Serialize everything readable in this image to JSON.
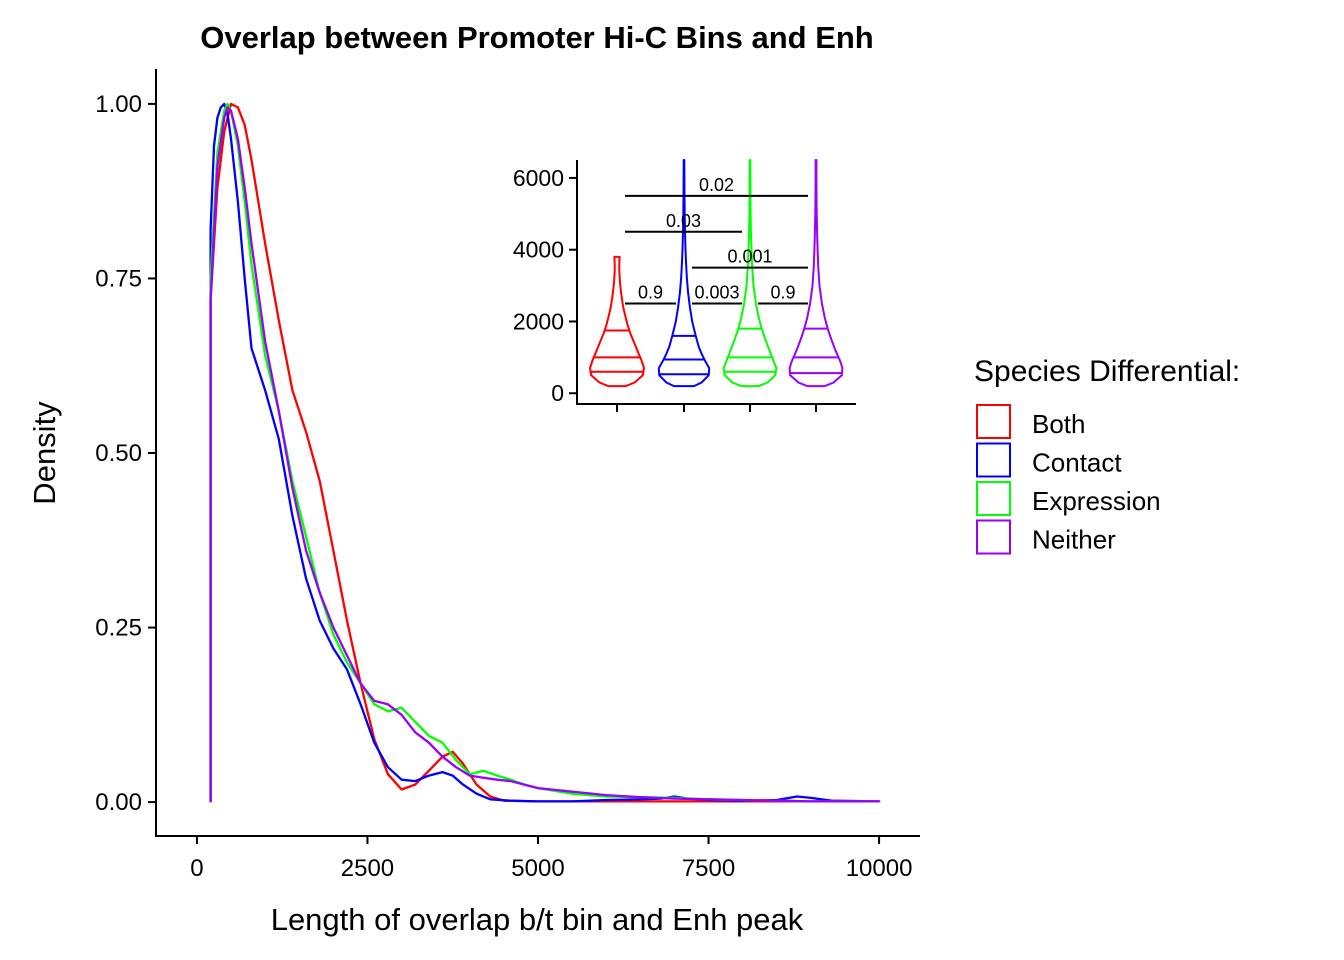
{
  "chart_data": [
    {
      "type": "line",
      "subtype": "density",
      "title": "Overlap between Promoter Hi-C Bins and Enh",
      "xlabel": "Length of overlap b/t bin and Enh peak",
      "ylabel": "Density",
      "xlim": [
        -600,
        10600
      ],
      "ylim": [
        -0.05,
        1.05
      ],
      "xticks": [
        0,
        2500,
        5000,
        7500,
        10000
      ],
      "xtick_labels": [
        "0",
        "2500",
        "5000",
        "7500",
        "10000"
      ],
      "yticks": [
        0,
        0.25,
        0.5,
        0.75,
        1
      ],
      "ytick_labels": [
        "0.00",
        "0.25",
        "0.50",
        "0.75",
        "1.00"
      ],
      "series": [
        {
          "name": "Both",
          "color": "#FF0000",
          "x": [
            200,
            200,
            300,
            400,
            500,
            600,
            700,
            800,
            1000,
            1200,
            1400,
            1600,
            1800,
            2000,
            2200,
            2400,
            2600,
            2800,
            3000,
            3200,
            3400,
            3600,
            3750,
            3900,
            4100,
            4300,
            4500,
            5000,
            6000,
            7000,
            8000,
            9000,
            10000,
            10000
          ],
          "y": [
            0,
            0.72,
            0.88,
            0.96,
            1.0,
            0.995,
            0.97,
            0.92,
            0.8,
            0.69,
            0.59,
            0.53,
            0.46,
            0.36,
            0.26,
            0.17,
            0.09,
            0.04,
            0.018,
            0.025,
            0.045,
            0.065,
            0.072,
            0.055,
            0.025,
            0.008,
            0.002,
            0.001,
            0.001,
            0.001,
            0.001,
            0.001,
            0.001,
            0
          ]
        },
        {
          "name": "Contact",
          "color": "#0000FF",
          "x": [
            200,
            200,
            250,
            300,
            350,
            400,
            450,
            500,
            600,
            700,
            800,
            1000,
            1200,
            1400,
            1600,
            1800,
            2000,
            2200,
            2400,
            2600,
            2800,
            3000,
            3200,
            3400,
            3600,
            3750,
            3900,
            4100,
            4300,
            4600,
            5000,
            5500,
            6000,
            6500,
            6800,
            7000,
            7200,
            7500,
            8000,
            8500,
            8800,
            9000,
            9300,
            10000,
            10000
          ],
          "y": [
            0,
            0.82,
            0.94,
            0.98,
            0.995,
            1.0,
            0.985,
            0.95,
            0.86,
            0.75,
            0.65,
            0.59,
            0.52,
            0.41,
            0.32,
            0.26,
            0.22,
            0.19,
            0.14,
            0.085,
            0.05,
            0.032,
            0.03,
            0.038,
            0.043,
            0.038,
            0.025,
            0.012,
            0.004,
            0.002,
            0.001,
            0.001,
            0.003,
            0.004,
            0.005,
            0.008,
            0.005,
            0.003,
            0.002,
            0.003,
            0.008,
            0.006,
            0.002,
            0.001,
            0
          ]
        },
        {
          "name": "Expression",
          "color": "#00FF00",
          "x": [
            200,
            200,
            300,
            400,
            450,
            500,
            600,
            700,
            800,
            1000,
            1200,
            1400,
            1600,
            1800,
            2000,
            2200,
            2400,
            2600,
            2800,
            3000,
            3200,
            3400,
            3600,
            3800,
            4000,
            4200,
            4400,
            4600,
            4800,
            5000,
            5500,
            6000,
            6500,
            7000,
            7500,
            8000,
            8500,
            9000,
            10000,
            10000
          ],
          "y": [
            0,
            0.75,
            0.93,
            0.99,
            1.0,
            0.99,
            0.94,
            0.86,
            0.77,
            0.64,
            0.56,
            0.46,
            0.38,
            0.3,
            0.24,
            0.2,
            0.17,
            0.14,
            0.13,
            0.135,
            0.115,
            0.095,
            0.085,
            0.06,
            0.04,
            0.045,
            0.038,
            0.032,
            0.025,
            0.02,
            0.012,
            0.008,
            0.007,
            0.006,
            0.004,
            0.003,
            0.002,
            0.001,
            0.001,
            0
          ]
        },
        {
          "name": "Neither",
          "color": "#9900FF",
          "x": [
            200,
            200,
            300,
            400,
            450,
            500,
            600,
            700,
            800,
            1000,
            1200,
            1400,
            1600,
            1800,
            2000,
            2200,
            2400,
            2600,
            2800,
            3000,
            3200,
            3400,
            3600,
            3800,
            4000,
            4200,
            4400,
            4600,
            4800,
            5000,
            5500,
            6000,
            6500,
            7000,
            7500,
            8000,
            8500,
            9000,
            10000,
            10000
          ],
          "y": [
            0,
            0.72,
            0.91,
            0.98,
            0.995,
            0.99,
            0.95,
            0.88,
            0.8,
            0.66,
            0.56,
            0.45,
            0.36,
            0.3,
            0.25,
            0.21,
            0.17,
            0.145,
            0.14,
            0.125,
            0.1,
            0.085,
            0.065,
            0.05,
            0.038,
            0.035,
            0.032,
            0.03,
            0.025,
            0.02,
            0.015,
            0.01,
            0.007,
            0.005,
            0.004,
            0.003,
            0.002,
            0.001,
            0.001,
            0
          ]
        }
      ]
    },
    {
      "type": "violin",
      "title": "",
      "xlabel": "",
      "ylabel": "",
      "ylim": [
        -300,
        6500
      ],
      "yticks": [
        0,
        2000,
        4000,
        6000
      ],
      "ytick_labels": [
        "0",
        "2000",
        "4000",
        "6000"
      ],
      "groups": [
        {
          "name": "Both",
          "color": "#FF0000",
          "min": 200,
          "max": 3800,
          "quantiles": [
            600,
            1000,
            1750
          ],
          "profile": [
            [
              200,
              150
            ],
            [
              300,
              300
            ],
            [
              500,
              440
            ],
            [
              700,
              460
            ],
            [
              900,
              420
            ],
            [
              1100,
              370
            ],
            [
              1300,
              320
            ],
            [
              1500,
              270
            ],
            [
              1700,
              220
            ],
            [
              1900,
              180
            ],
            [
              2100,
              150
            ],
            [
              2300,
              120
            ],
            [
              2500,
              95
            ],
            [
              2800,
              70
            ],
            [
              3100,
              50
            ],
            [
              3400,
              40
            ],
            [
              3600,
              40
            ],
            [
              3800,
              45
            ]
          ]
        },
        {
          "name": "Contact",
          "color": "#0000FF",
          "min": 200,
          "max": 6500,
          "quantiles": [
            530,
            940,
            1600
          ],
          "profile": [
            [
              200,
              170
            ],
            [
              300,
              300
            ],
            [
              500,
              420
            ],
            [
              700,
              430
            ],
            [
              900,
              360
            ],
            [
              1100,
              300
            ],
            [
              1300,
              250
            ],
            [
              1600,
              200
            ],
            [
              2000,
              140
            ],
            [
              2400,
              100
            ],
            [
              2800,
              70
            ],
            [
              3200,
              50
            ],
            [
              3600,
              35
            ],
            [
              4000,
              25
            ],
            [
              4500,
              17
            ],
            [
              5000,
              12
            ],
            [
              5500,
              8
            ],
            [
              6000,
              6
            ],
            [
              6500,
              5
            ]
          ]
        },
        {
          "name": "Expression",
          "color": "#00FF00",
          "min": 200,
          "max": 6500,
          "quantiles": [
            600,
            1000,
            1800
          ],
          "profile": [
            [
              200,
              150
            ],
            [
              300,
              300
            ],
            [
              500,
              430
            ],
            [
              700,
              450
            ],
            [
              900,
              400
            ],
            [
              1200,
              330
            ],
            [
              1500,
              260
            ],
            [
              1800,
              200
            ],
            [
              2100,
              150
            ],
            [
              2500,
              100
            ],
            [
              3000,
              60
            ],
            [
              3500,
              38
            ],
            [
              4000,
              25
            ],
            [
              4500,
              16
            ],
            [
              5000,
              11
            ],
            [
              5500,
              8
            ],
            [
              6000,
              6
            ],
            [
              6500,
              5
            ]
          ]
        },
        {
          "name": "Neither",
          "color": "#9900FF",
          "min": 200,
          "max": 6500,
          "quantiles": [
            560,
            1000,
            1800
          ],
          "profile": [
            [
              200,
              150
            ],
            [
              300,
              300
            ],
            [
              500,
              440
            ],
            [
              700,
              450
            ],
            [
              900,
              410
            ],
            [
              1200,
              330
            ],
            [
              1500,
              260
            ],
            [
              1800,
              200
            ],
            [
              2100,
              150
            ],
            [
              2500,
              100
            ],
            [
              3000,
              60
            ],
            [
              3500,
              40
            ],
            [
              4000,
              28
            ],
            [
              4500,
              18
            ],
            [
              5000,
              12
            ],
            [
              5500,
              9
            ],
            [
              6000,
              7
            ],
            [
              6500,
              6
            ]
          ]
        }
      ],
      "comparisons": [
        {
          "groups": [
            "Both",
            "Contact"
          ],
          "y": 2500,
          "label": "0.9"
        },
        {
          "groups": [
            "Contact",
            "Expression"
          ],
          "y": 2500,
          "label": "0.003"
        },
        {
          "groups": [
            "Expression",
            "Neither"
          ],
          "y": 2500,
          "label": "0.9"
        },
        {
          "groups": [
            "Contact",
            "Neither"
          ],
          "y": 3500,
          "label": "0.001"
        },
        {
          "groups": [
            "Both",
            "Expression"
          ],
          "y": 4500,
          "label": "0.03"
        },
        {
          "groups": [
            "Both",
            "Neither"
          ],
          "y": 5500,
          "label": "0.02"
        }
      ]
    }
  ],
  "legend": {
    "title": "Species Differential:",
    "items": [
      {
        "label": "Both",
        "color": "#FF0000"
      },
      {
        "label": "Contact",
        "color": "#0000FF"
      },
      {
        "label": "Expression",
        "color": "#00FF00"
      },
      {
        "label": "Neither",
        "color": "#9900FF"
      }
    ]
  }
}
